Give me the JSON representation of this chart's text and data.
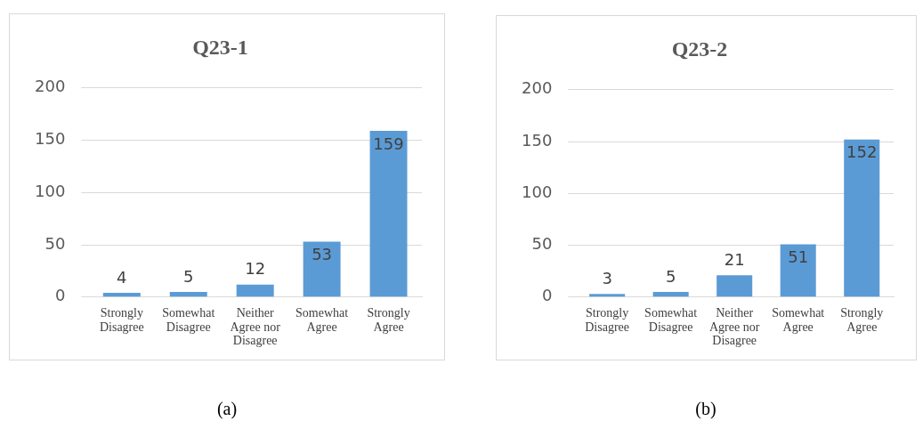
{
  "chart_data": [
    {
      "type": "bar",
      "title": "Q23-1",
      "categories": [
        "Strongly Disagree",
        "Somewhat Disagree",
        "Neither Agree nor Disagree",
        "Somewhat Agree",
        "Strongly Agree"
      ],
      "values": [
        4,
        5,
        12,
        53,
        159
      ],
      "color": "#5b9bd5",
      "ylim": [
        0,
        200
      ],
      "yticks": [
        0,
        50,
        100,
        150,
        200
      ],
      "grid": "y",
      "data_labels": true,
      "annotations": [
        "(a)"
      ]
    },
    {
      "type": "bar",
      "title": "Q23-2",
      "categories": [
        "Strongly Disagree",
        "Somewhat Disagree",
        "Neither Agree nor Disagree",
        "Somewhat Agree",
        "Strongly Agree"
      ],
      "values": [
        3,
        5,
        21,
        51,
        152
      ],
      "color": "#5b9bd5",
      "ylim": [
        0,
        200
      ],
      "yticks": [
        0,
        50,
        100,
        150,
        200
      ],
      "grid": "y",
      "data_labels": true,
      "annotations": [
        "(b)"
      ]
    }
  ]
}
